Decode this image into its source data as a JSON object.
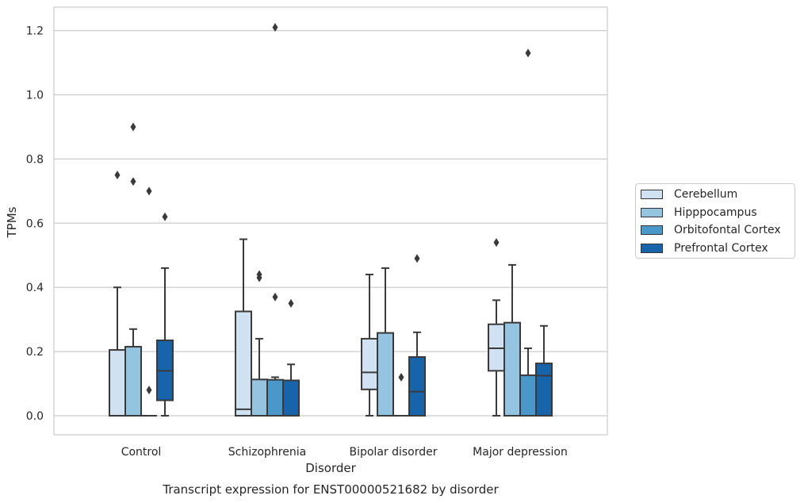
{
  "chart_data": {
    "type": "box",
    "title": "Transcript expression for ENST00000521682 by disorder",
    "xlabel": "Disorder",
    "ylabel": "TPMs",
    "ylim": [
      -0.06,
      1.27
    ],
    "yticks": [
      0.0,
      0.2,
      0.4,
      0.6,
      0.8,
      1.0,
      1.2
    ],
    "ytick_labels": [
      "0.0",
      "0.2",
      "0.4",
      "0.6",
      "0.8",
      "1.0",
      "1.2"
    ],
    "categories": [
      "Control",
      "Schizophrenia",
      "Bipolar disorder",
      "Major depression"
    ],
    "grid": "horizontal",
    "legend_position": "right",
    "series": [
      {
        "name": "Cerebellum",
        "color": "#d0e1f2",
        "boxes": [
          {
            "q1": 0.0,
            "median": 0.0,
            "q3": 0.205,
            "whisker_low": 0.0,
            "whisker_high": 0.4,
            "outliers": [
              0.75
            ]
          },
          {
            "q1": 0.0,
            "median": 0.02,
            "q3": 0.325,
            "whisker_low": 0.0,
            "whisker_high": 0.55,
            "outliers": []
          },
          {
            "q1": 0.082,
            "median": 0.135,
            "q3": 0.24,
            "whisker_low": 0.0,
            "whisker_high": 0.44,
            "outliers": []
          },
          {
            "q1": 0.14,
            "median": 0.21,
            "q3": 0.285,
            "whisker_low": 0.0,
            "whisker_high": 0.36,
            "outliers": [
              0.54
            ]
          }
        ]
      },
      {
        "name": "Hipppocampus",
        "color": "#94c4df",
        "boxes": [
          {
            "q1": 0.0,
            "median": 0.0,
            "q3": 0.215,
            "whisker_low": 0.0,
            "whisker_high": 0.27,
            "outliers": [
              0.73,
              0.9
            ]
          },
          {
            "q1": 0.0,
            "median": 0.0,
            "q3": 0.113,
            "whisker_low": 0.0,
            "whisker_high": 0.24,
            "outliers": [
              0.43,
              0.44
            ]
          },
          {
            "q1": 0.0,
            "median": 0.0,
            "q3": 0.258,
            "whisker_low": 0.0,
            "whisker_high": 0.46,
            "outliers": []
          },
          {
            "q1": 0.0,
            "median": 0.0,
            "q3": 0.29,
            "whisker_low": 0.0,
            "whisker_high": 0.47,
            "outliers": []
          }
        ]
      },
      {
        "name": "Orbitofontal Cortex",
        "color": "#4a98c9",
        "boxes": [
          {
            "q1": 0.0,
            "median": 0.0,
            "q3": 0.0,
            "whisker_low": 0.0,
            "whisker_high": 0.0,
            "outliers": [
              0.08,
              0.7
            ]
          },
          {
            "q1": 0.0,
            "median": 0.0,
            "q3": 0.112,
            "whisker_low": 0.0,
            "whisker_high": 0.12,
            "outliers": [
              0.37,
              1.21
            ]
          },
          {
            "q1": 0.0,
            "median": 0.0,
            "q3": 0.0,
            "whisker_low": 0.0,
            "whisker_high": 0.0,
            "outliers": [
              0.12
            ]
          },
          {
            "q1": 0.0,
            "median": 0.0,
            "q3": 0.126,
            "whisker_low": 0.0,
            "whisker_high": 0.21,
            "outliers": [
              1.13
            ]
          }
        ]
      },
      {
        "name": "Prefrontal Cortex",
        "color": "#1764ab",
        "boxes": [
          {
            "q1": 0.048,
            "median": 0.14,
            "q3": 0.235,
            "whisker_low": 0.0,
            "whisker_high": 0.46,
            "outliers": [
              0.62
            ]
          },
          {
            "q1": 0.0,
            "median": 0.0,
            "q3": 0.11,
            "whisker_low": 0.0,
            "whisker_high": 0.16,
            "outliers": [
              0.35
            ]
          },
          {
            "q1": 0.0,
            "median": 0.075,
            "q3": 0.183,
            "whisker_low": 0.0,
            "whisker_high": 0.26,
            "outliers": [
              0.49
            ]
          },
          {
            "q1": 0.0,
            "median": 0.125,
            "q3": 0.163,
            "whisker_low": 0.0,
            "whisker_high": 0.28,
            "outliers": []
          }
        ]
      }
    ]
  }
}
